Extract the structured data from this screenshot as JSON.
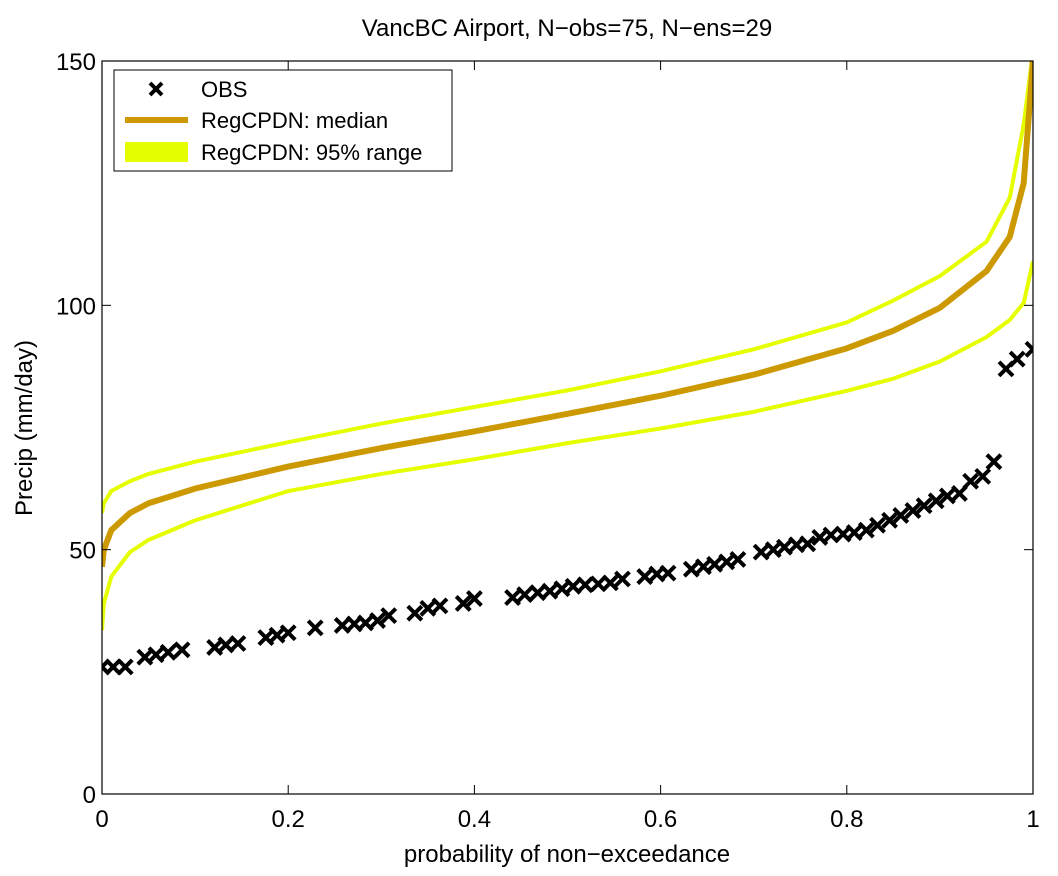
{
  "chart_data": {
    "type": "line",
    "title": "VancBC Airport, N−obs=75, N−ens=29",
    "xlabel": "probability of non−exceedance",
    "ylabel": "Precip (mm/day)",
    "xlim": [
      0,
      1
    ],
    "ylim": [
      0,
      150
    ],
    "xticks": [
      0,
      0.2,
      0.4,
      0.6,
      0.8,
      1
    ],
    "xtick_labels": [
      "0",
      "0.2",
      "0.4",
      "0.6",
      "0.8",
      "1"
    ],
    "yticks": [
      0,
      50,
      100,
      150
    ],
    "ytick_labels": [
      "0",
      "50",
      "100",
      "150"
    ],
    "grid": false,
    "legend_position": "top-left",
    "legend": [
      {
        "label": "OBS",
        "marker": "x",
        "color": "#000000"
      },
      {
        "label": "RegCPDN: median",
        "color": "#cc9900"
      },
      {
        "label": "RegCPDN: 95% range",
        "color": "#e5ff00"
      }
    ],
    "series": [
      {
        "name": "RegCPDN: 95% range",
        "color": "#e5ff00",
        "x": [
          0,
          0.002,
          0.01,
          0.03,
          0.05,
          0.1,
          0.2,
          0.3,
          0.4,
          0.5,
          0.6,
          0.7,
          0.8,
          0.85,
          0.9,
          0.95,
          0.975,
          0.99,
          1
        ],
        "y": [
          57.5,
          59.5,
          62,
          64,
          65.5,
          68,
          72,
          75.8,
          79.2,
          82.6,
          86.5,
          91,
          96.5,
          101,
          106,
          113,
          122,
          137,
          152
        ]
      },
      {
        "name": "RegCPDN: 95% range",
        "color": "#e5ff00",
        "x": [
          0,
          0.002,
          0.01,
          0.03,
          0.05,
          0.1,
          0.2,
          0.3,
          0.4,
          0.5,
          0.6,
          0.7,
          0.8,
          0.85,
          0.9,
          0.95,
          0.975,
          0.99,
          1
        ],
        "y": [
          33.5,
          39,
          44.5,
          49.5,
          52,
          56,
          62,
          65.5,
          68.5,
          71.8,
          74.8,
          78.2,
          82.5,
          85,
          88.5,
          93.5,
          97,
          100.5,
          109
        ]
      },
      {
        "name": "RegCPDN: median",
        "color": "#cc9900",
        "x": [
          0,
          0.002,
          0.01,
          0.03,
          0.05,
          0.1,
          0.2,
          0.3,
          0.4,
          0.5,
          0.6,
          0.7,
          0.8,
          0.85,
          0.9,
          0.95,
          0.975,
          0.99,
          1
        ],
        "y": [
          46.5,
          50,
          54,
          57.5,
          59.5,
          62.5,
          67,
          70.8,
          74.2,
          77.8,
          81.5,
          85.8,
          91.2,
          94.8,
          99.5,
          107,
          114,
          125,
          150
        ]
      },
      {
        "name": "OBS",
        "marker": "x",
        "color": "#000000",
        "x": [
          0.0,
          0.012,
          0.025,
          0.046,
          0.058,
          0.071,
          0.086,
          0.121,
          0.133,
          0.146,
          0.176,
          0.188,
          0.2,
          0.229,
          0.258,
          0.271,
          0.283,
          0.296,
          0.308,
          0.336,
          0.35,
          0.363,
          0.388,
          0.4,
          0.441,
          0.454,
          0.468,
          0.481,
          0.494,
          0.506,
          0.519,
          0.533,
          0.546,
          0.559,
          0.583,
          0.596,
          0.608,
          0.633,
          0.646,
          0.658,
          0.671,
          0.683,
          0.708,
          0.721,
          0.733,
          0.746,
          0.758,
          0.771,
          0.783,
          0.796,
          0.808,
          0.821,
          0.833,
          0.846,
          0.858,
          0.871,
          0.883,
          0.896,
          0.908,
          0.921,
          0.933,
          0.946,
          0.958,
          0.971,
          0.983,
          1.0
        ],
        "y": [
          26,
          26,
          26,
          28,
          28.5,
          29,
          29.5,
          30,
          30.5,
          30.8,
          32,
          32.5,
          33,
          34,
          34.5,
          34.8,
          35,
          35.5,
          36.5,
          37,
          38,
          38.5,
          39,
          40,
          40.2,
          40.8,
          41.2,
          41.5,
          42,
          42.5,
          42.8,
          43,
          43.2,
          44,
          44.5,
          45,
          45.2,
          46,
          46.5,
          47,
          47.5,
          48,
          49.5,
          50,
          50.5,
          51,
          51.2,
          52.5,
          53,
          53.2,
          53.5,
          54,
          55,
          56,
          57,
          58,
          59,
          60,
          61,
          61.5,
          64,
          65,
          68,
          87,
          89,
          91
        ]
      }
    ]
  }
}
